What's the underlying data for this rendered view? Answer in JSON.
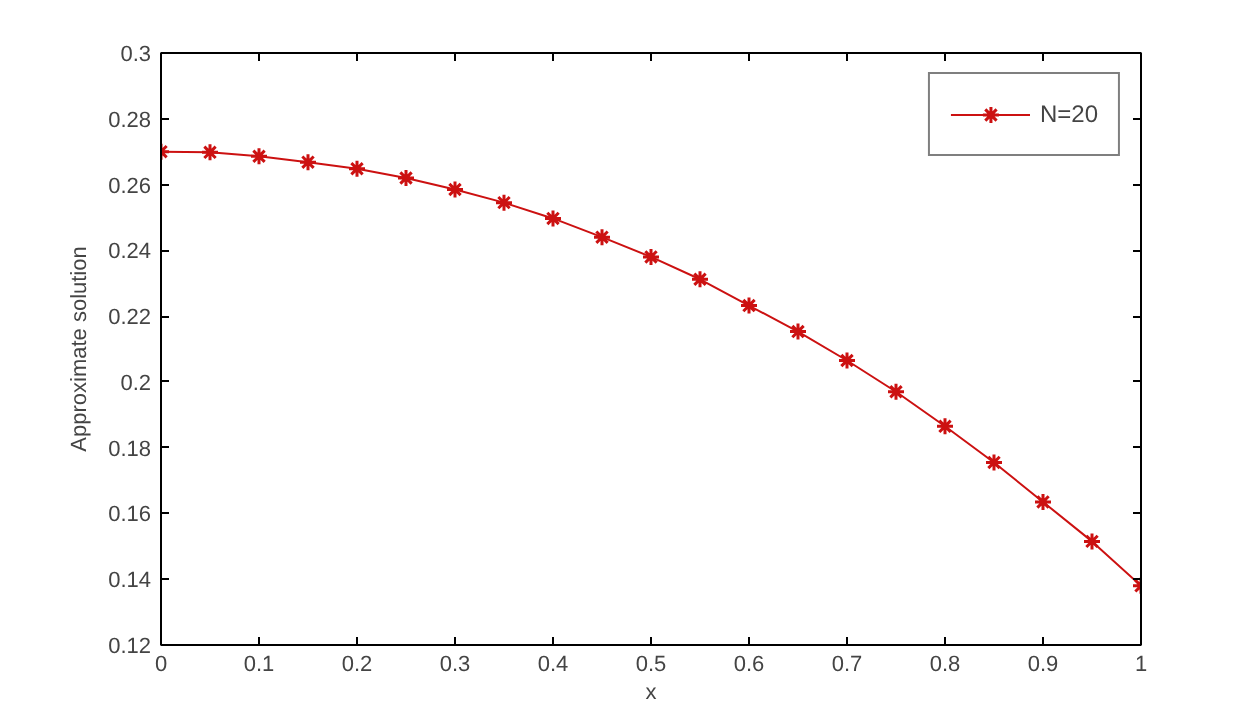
{
  "chart_data": {
    "type": "line",
    "xlabel": "x",
    "ylabel": "Approximate solution",
    "x": [
      0,
      0.05,
      0.1,
      0.15,
      0.2,
      0.25,
      0.3,
      0.35,
      0.4,
      0.45,
      0.5,
      0.55,
      0.6,
      0.65,
      0.7,
      0.75,
      0.8,
      0.85,
      0.9,
      0.95,
      1
    ],
    "series": [
      {
        "name": "N=20",
        "color": "#cc1111",
        "values": [
          0.27,
          0.2698,
          0.2686,
          0.2668,
          0.2648,
          0.262,
          0.2585,
          0.2545,
          0.2497,
          0.244,
          0.238,
          0.2312,
          0.2232,
          0.2153,
          0.2065,
          0.197,
          0.1865,
          0.1755,
          0.1635,
          0.1515,
          0.138
        ]
      }
    ],
    "xlim": [
      0,
      1
    ],
    "xticks": [
      0,
      0.1,
      0.2,
      0.3,
      0.4,
      0.5,
      0.6,
      0.7,
      0.8,
      0.9,
      1
    ],
    "ylim": [
      0.12,
      0.3
    ],
    "yticks": [
      0.12,
      0.14,
      0.16,
      0.18,
      0.2,
      0.22,
      0.24,
      0.26,
      0.28,
      0.3
    ],
    "marker": "cross",
    "line_style": "solid",
    "legend": "top right",
    "grid": false
  }
}
